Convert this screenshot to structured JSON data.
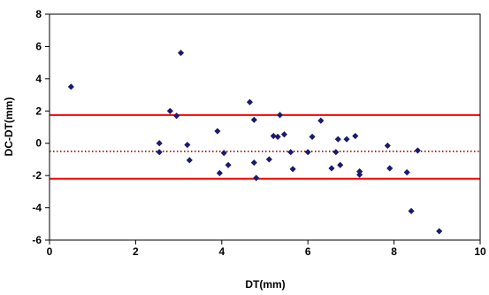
{
  "chart_data": {
    "type": "scatter",
    "title": "",
    "xlabel": "DT(mm)",
    "ylabel": "DC-DT(mm)",
    "xlim": [
      0,
      10
    ],
    "ylim": [
      -6,
      8
    ],
    "x_ticks": [
      0,
      2,
      4,
      6,
      8,
      10
    ],
    "y_ticks": [
      -6,
      -4,
      -2,
      0,
      2,
      4,
      6,
      8
    ],
    "x_tick_labels": [
      "0",
      "2",
      "4",
      "6",
      "8",
      "10"
    ],
    "y_tick_labels": [
      "-6",
      "-4",
      "-2",
      "0",
      "2",
      "4",
      "6",
      "8"
    ],
    "grid": false,
    "legend": "none",
    "series": [
      {
        "color": "#1a1a6e",
        "marker": "diamond",
        "points": [
          {
            "x": 0.5,
            "y": 3.5
          },
          {
            "x": 2.55,
            "y": 0.0
          },
          {
            "x": 2.55,
            "y": -0.55
          },
          {
            "x": 2.8,
            "y": 2.0
          },
          {
            "x": 2.95,
            "y": 1.7
          },
          {
            "x": 3.05,
            "y": 5.6
          },
          {
            "x": 3.2,
            "y": -0.1
          },
          {
            "x": 3.25,
            "y": -1.05
          },
          {
            "x": 3.9,
            "y": 0.75
          },
          {
            "x": 3.95,
            "y": -1.85
          },
          {
            "x": 4.05,
            "y": -0.6
          },
          {
            "x": 4.15,
            "y": -1.35
          },
          {
            "x": 4.65,
            "y": 2.55
          },
          {
            "x": 4.75,
            "y": 1.45
          },
          {
            "x": 4.75,
            "y": -1.2
          },
          {
            "x": 4.8,
            "y": -2.15
          },
          {
            "x": 5.1,
            "y": -1.0
          },
          {
            "x": 5.2,
            "y": 0.45
          },
          {
            "x": 5.3,
            "y": 0.4
          },
          {
            "x": 5.35,
            "y": 1.75
          },
          {
            "x": 5.45,
            "y": 0.55
          },
          {
            "x": 5.6,
            "y": -0.55
          },
          {
            "x": 5.65,
            "y": -1.6
          },
          {
            "x": 6.0,
            "y": -0.55
          },
          {
            "x": 6.1,
            "y": 0.4
          },
          {
            "x": 6.3,
            "y": 1.4
          },
          {
            "x": 6.55,
            "y": -1.55
          },
          {
            "x": 6.65,
            "y": -0.55
          },
          {
            "x": 6.7,
            "y": 0.25
          },
          {
            "x": 6.75,
            "y": -1.35
          },
          {
            "x": 6.9,
            "y": 0.25
          },
          {
            "x": 7.1,
            "y": 0.45
          },
          {
            "x": 7.2,
            "y": -1.95
          },
          {
            "x": 7.2,
            "y": -1.75
          },
          {
            "x": 7.85,
            "y": -0.15
          },
          {
            "x": 7.9,
            "y": -1.55
          },
          {
            "x": 8.3,
            "y": -1.8
          },
          {
            "x": 8.4,
            "y": -4.2
          },
          {
            "x": 8.55,
            "y": -0.45
          },
          {
            "x": 9.05,
            "y": -5.45
          }
        ]
      }
    ],
    "reference_lines": [
      {
        "y": 1.75,
        "color": "#ff0000",
        "style": "solid"
      },
      {
        "y": -0.5,
        "color": "#990000",
        "style": "dotted"
      },
      {
        "y": -2.2,
        "color": "#ff0000",
        "style": "solid"
      }
    ]
  }
}
